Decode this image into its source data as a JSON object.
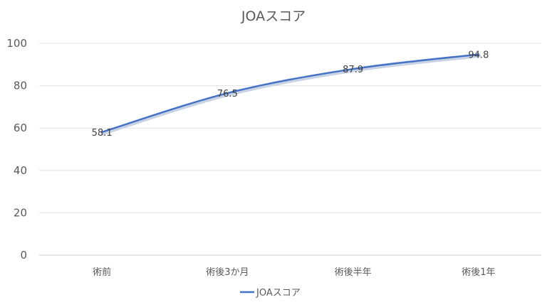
{
  "chart_data": {
    "type": "line",
    "title": "JOAスコア",
    "categories": [
      "術前",
      "術後3か月",
      "術後半年",
      "術後1年"
    ],
    "series": [
      {
        "name": "JOAスコア",
        "values": [
          58.1,
          76.5,
          87.9,
          94.8
        ],
        "color": "#4472C4",
        "labels": [
          "58.1",
          "76.5",
          "87.9",
          "94.8"
        ]
      }
    ],
    "yticks": [
      "0",
      "20",
      "40",
      "60",
      "80",
      "100"
    ],
    "ylim": [
      0,
      100
    ],
    "xlabel": "",
    "ylabel": "",
    "grid": true,
    "legend": "bottom",
    "smooth": true
  }
}
